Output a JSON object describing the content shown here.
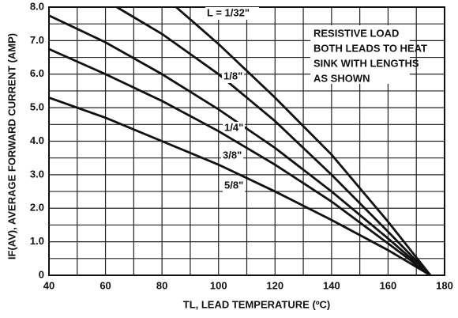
{
  "chart_data": {
    "type": "line",
    "x_label": "TL, LEAD TEMPERATURE (ºC)",
    "y_label": "IF(AV), AVERAGE FORWARD CURRENT (AMP)",
    "annotation": [
      "RESISTIVE LOAD",
      "BOTH LEADS TO HEAT",
      "SINK WITH LENGTHS",
      "AS SHOWN"
    ],
    "xlim": [
      40,
      180
    ],
    "ylim": [
      0,
      8
    ],
    "xticks": [
      40,
      60,
      80,
      100,
      120,
      140,
      160,
      180
    ],
    "yticks": [
      0,
      {
        "value": 1,
        "label": "1.0"
      },
      {
        "value": 2,
        "label": "2.0"
      },
      {
        "value": 3,
        "label": "3.0"
      },
      {
        "value": 4,
        "label": "4.0"
      },
      {
        "value": 5,
        "label": "5.0"
      },
      {
        "value": 6,
        "label": "6.0"
      },
      {
        "value": 7,
        "label": "7.0"
      },
      {
        "value": 8,
        "label": "8.0"
      }
    ],
    "xminor": [
      50,
      70,
      90,
      110,
      130,
      150,
      170
    ],
    "yminor": [
      0.5,
      1.5,
      2.5,
      3.5,
      4.5,
      5.5,
      6.5,
      7.5
    ],
    "grid": true,
    "color": "#111111",
    "series": [
      {
        "name": "L = 1/32\"",
        "x": [
          85,
          100,
          120,
          140,
          160,
          175
        ],
        "values": [
          8.0,
          6.9,
          5.3,
          3.6,
          1.6,
          0
        ]
      },
      {
        "name": "1/8\"",
        "x": [
          64,
          80,
          100,
          120,
          140,
          160,
          175
        ],
        "values": [
          8.0,
          7.2,
          6.0,
          4.6,
          3.0,
          1.3,
          0
        ]
      },
      {
        "name": "1/4\"",
        "x": [
          40,
          60,
          80,
          100,
          120,
          140,
          160,
          175
        ],
        "values": [
          7.75,
          6.95,
          6.0,
          4.95,
          3.8,
          2.5,
          1.1,
          0
        ]
      },
      {
        "name": "3/8\"",
        "x": [
          40,
          60,
          80,
          100,
          120,
          140,
          160,
          175
        ],
        "values": [
          6.75,
          6.0,
          5.2,
          4.3,
          3.3,
          2.2,
          0.95,
          0
        ]
      },
      {
        "name": "5/8\"",
        "x": [
          40,
          60,
          80,
          100,
          120,
          140,
          160,
          175
        ],
        "values": [
          5.3,
          4.7,
          4.0,
          3.3,
          2.5,
          1.65,
          0.75,
          0
        ]
      }
    ]
  }
}
